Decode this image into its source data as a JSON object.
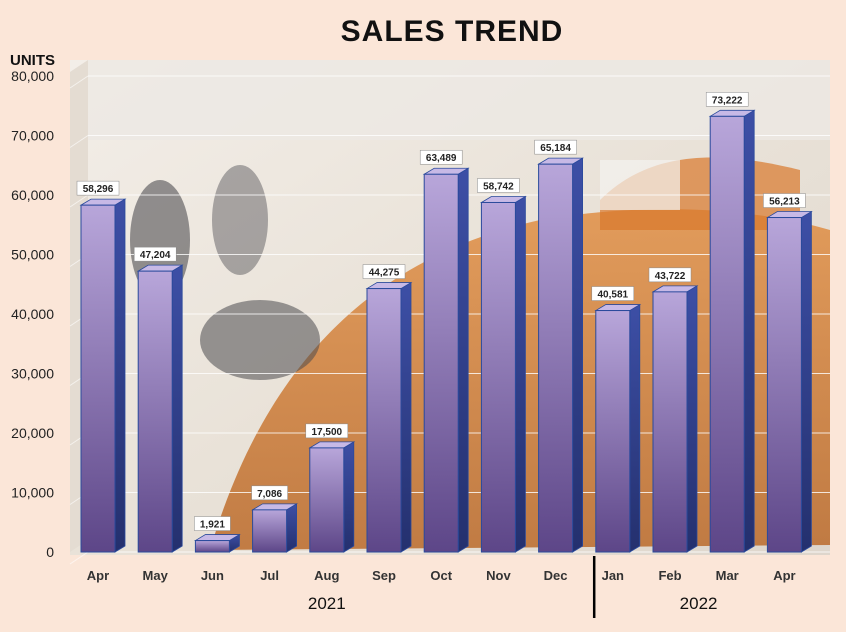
{
  "chart_data": {
    "type": "bar",
    "title": "SALES TREND",
    "ylabel": "UNITS",
    "ylim": [
      0,
      80000
    ],
    "yticks": [
      "0",
      "10,000",
      "20,000",
      "30,000",
      "40,000",
      "50,000",
      "60,000",
      "70,000",
      "80,000"
    ],
    "categories": [
      "Apr",
      "May",
      "Jun",
      "Jul",
      "Aug",
      "Sep",
      "Oct",
      "Nov",
      "Dec",
      "Jan",
      "Feb",
      "Mar",
      "Apr"
    ],
    "values": [
      58296,
      47204,
      1921,
      7086,
      17500,
      44275,
      63489,
      58742,
      65184,
      40581,
      43722,
      73222,
      56213
    ],
    "data_labels": [
      "58,296",
      "47,204",
      "1,921",
      "7,086",
      "17,500",
      "44,275",
      "63,489",
      "58,742",
      "65,184",
      "40,581",
      "43,722",
      "73,222",
      "56,213"
    ],
    "groups": [
      {
        "label": "2021",
        "count": 9
      },
      {
        "label": "2022",
        "count": 4
      }
    ],
    "grid": true,
    "colors": {
      "background": "#fbe6d8",
      "bar_top": "#b8a6da",
      "bar_bottom": "#5d4688",
      "bar_side": "#2f3f8f",
      "bar_outline": "#2a4a9c"
    }
  }
}
